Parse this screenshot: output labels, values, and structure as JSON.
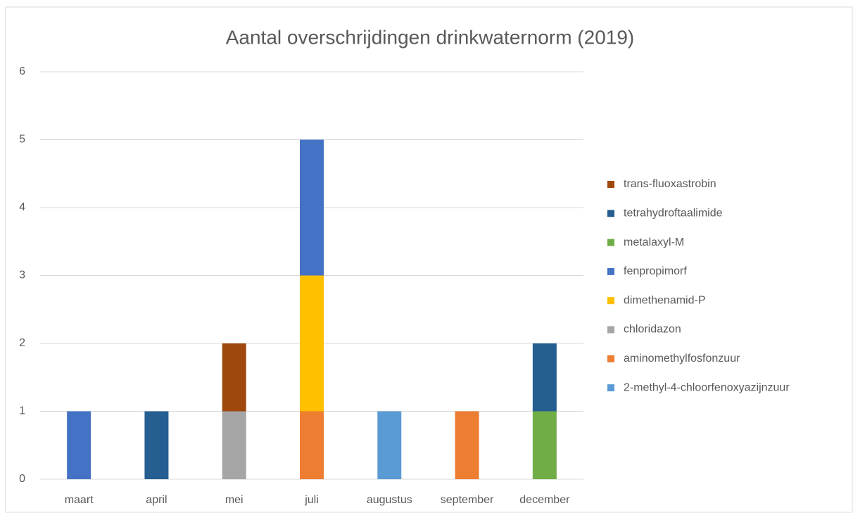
{
  "chart_data": {
    "type": "stacked_bar",
    "title": "Aantal overschrijdingen drinkwaternorm (2019)",
    "categories": [
      "maart",
      "april",
      "mei",
      "juli",
      "augustus",
      "september",
      "december"
    ],
    "series": [
      {
        "name": "2-methyl-4-chloorfenoxyazijnzuur",
        "color": "#5b9bd5",
        "values": [
          0,
          0,
          0,
          0,
          1,
          0,
          0
        ]
      },
      {
        "name": "aminomethylfosfonzuur",
        "color": "#ed7d31",
        "values": [
          0,
          0,
          0,
          1,
          0,
          1,
          0
        ]
      },
      {
        "name": "chloridazon",
        "color": "#a5a5a5",
        "values": [
          0,
          0,
          1,
          0,
          0,
          0,
          0
        ]
      },
      {
        "name": "dimethenamid-P",
        "color": "#ffc000",
        "values": [
          0,
          0,
          0,
          2,
          0,
          0,
          0
        ]
      },
      {
        "name": "fenpropimorf",
        "color": "#4472c4",
        "values": [
          1,
          0,
          0,
          2,
          0,
          0,
          0
        ]
      },
      {
        "name": "metalaxyl-M",
        "color": "#70ad47",
        "values": [
          0,
          0,
          0,
          0,
          0,
          0,
          1
        ]
      },
      {
        "name": "tetrahydroftaalimide",
        "color": "#255e91",
        "values": [
          0,
          1,
          0,
          0,
          0,
          0,
          1
        ]
      },
      {
        "name": "trans-fluoxastrobin",
        "color": "#9e480e",
        "values": [
          0,
          0,
          1,
          0,
          0,
          0,
          0
        ]
      }
    ],
    "ylim": [
      0,
      6
    ],
    "yticks": [
      0,
      1,
      2,
      3,
      4,
      5,
      6
    ],
    "grid": true,
    "legend": "right"
  }
}
